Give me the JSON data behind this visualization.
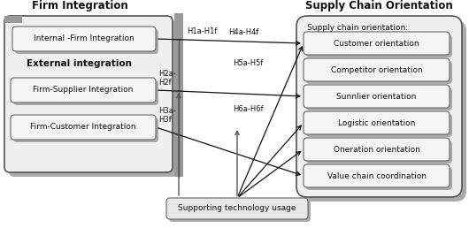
{
  "bg_color": "#ffffff",
  "left_title": "Firm Integration",
  "right_title": "Supply Chain Orientation",
  "left_boxes": [
    "Internal -Firm Integration",
    "Firm-Supplier Integration",
    "Firm-Customer Integration"
  ],
  "external_title": "External integration",
  "right_label": "Supply chain orientation:",
  "right_boxes": [
    "Customer orientation",
    "Competitor orientation",
    "Sunnlier orientation",
    "Logistic orientation",
    "Oneration orientation",
    "Value chain coordination"
  ],
  "bottom_box": "Supporting technology usage",
  "h_labels_left": [
    "H1a-H1f",
    "H2a-\nH2f",
    "H3a-\nH3f"
  ],
  "h_labels_right": [
    "H4a-H4f",
    "H5a-H5f",
    "H6a-H6f"
  ],
  "box_fill": "#f5f5f5",
  "shadow_color": "#aaaaaa",
  "border_color": "#555555",
  "outer_fill": "#f8f8f8",
  "bar_color": "#888888",
  "arrow_color": "#111111"
}
